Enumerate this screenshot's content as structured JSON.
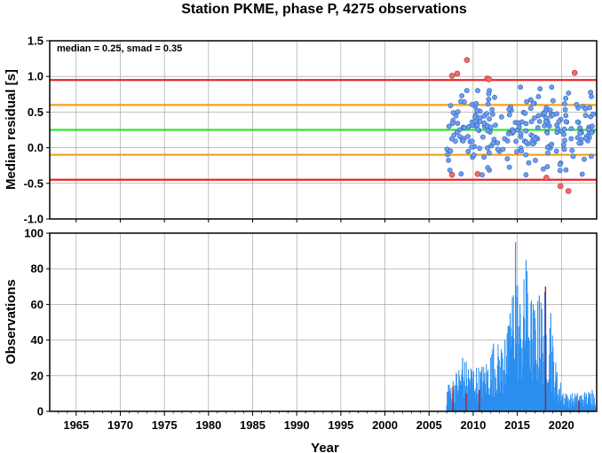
{
  "title": "Station PKME, phase P, 4275 observations",
  "chart_data": [
    {
      "type": "scatter",
      "ylabel": "Median residual [s]",
      "xlim": [
        1962,
        2024
      ],
      "ylim": [
        -1.0,
        1.5
      ],
      "yticks": [
        "1.5",
        "1.0",
        "0.5",
        "0.0",
        "-0.5",
        "-1.0"
      ],
      "annotation": "median = 0.25, smad = 0.35",
      "grid": true,
      "reference_lines": [
        {
          "y": 0.95,
          "color": "#e8262a"
        },
        {
          "y": 0.6,
          "color": "#f7a11a"
        },
        {
          "y": 0.25,
          "color": "#2ee62e"
        },
        {
          "y": -0.1,
          "color": "#f7a11a"
        },
        {
          "y": -0.45,
          "color": "#e8262a"
        }
      ],
      "colors": {
        "normal": "#6c9ff0",
        "outlier": "#f06b6b"
      },
      "outliers": [
        {
          "x": 2007.6,
          "y": 1.01
        },
        {
          "x": 2008.2,
          "y": 1.04
        },
        {
          "x": 2009.3,
          "y": 1.23
        },
        {
          "x": 2011.6,
          "y": 0.97
        },
        {
          "x": 2011.8,
          "y": 0.96
        },
        {
          "x": 2010.5,
          "y": -0.37
        },
        {
          "x": 2007.6,
          "y": -0.38
        },
        {
          "x": 2018.3,
          "y": -0.42
        },
        {
          "x": 2019.9,
          "y": -0.54
        },
        {
          "x": 2020.8,
          "y": -0.61
        },
        {
          "x": 2021.5,
          "y": 1.05
        }
      ]
    },
    {
      "type": "bar",
      "xlabel": "Year",
      "ylabel": "Observations",
      "xlim": [
        1962,
        2024
      ],
      "ylim": [
        0,
        100
      ],
      "xticks": [
        "1965",
        "1970",
        "1975",
        "1980",
        "1985",
        "1990",
        "1995",
        "2000",
        "2005",
        "2010",
        "2015",
        "2020"
      ],
      "yticks": [
        "0",
        "20",
        "40",
        "60",
        "80",
        "100"
      ],
      "grid": true,
      "colors": {
        "bars": "#2a8ef0",
        "highlight": "#b02030"
      },
      "peaks": [
        {
          "x": 2007.2,
          "y": 15
        },
        {
          "x": 2008.8,
          "y": 30
        },
        {
          "x": 2011.0,
          "y": 25
        },
        {
          "x": 2012.3,
          "y": 38
        },
        {
          "x": 2013.6,
          "y": 40
        },
        {
          "x": 2014.2,
          "y": 55
        },
        {
          "x": 2014.8,
          "y": 95
        },
        {
          "x": 2015.3,
          "y": 60
        },
        {
          "x": 2016.0,
          "y": 85
        },
        {
          "x": 2016.8,
          "y": 60
        },
        {
          "x": 2017.5,
          "y": 65
        },
        {
          "x": 2018.2,
          "y": 70
        },
        {
          "x": 2018.8,
          "y": 55
        },
        {
          "x": 2019.5,
          "y": 22
        },
        {
          "x": 2020.5,
          "y": 10
        },
        {
          "x": 2023.5,
          "y": 12
        }
      ],
      "highlight_bars": [
        {
          "x": 2007.7,
          "y": 14
        },
        {
          "x": 2009.2,
          "y": 10
        },
        {
          "x": 2010.7,
          "y": 12
        },
        {
          "x": 2018.2,
          "y": 70
        },
        {
          "x": 2022.0,
          "y": 6
        }
      ]
    }
  ]
}
